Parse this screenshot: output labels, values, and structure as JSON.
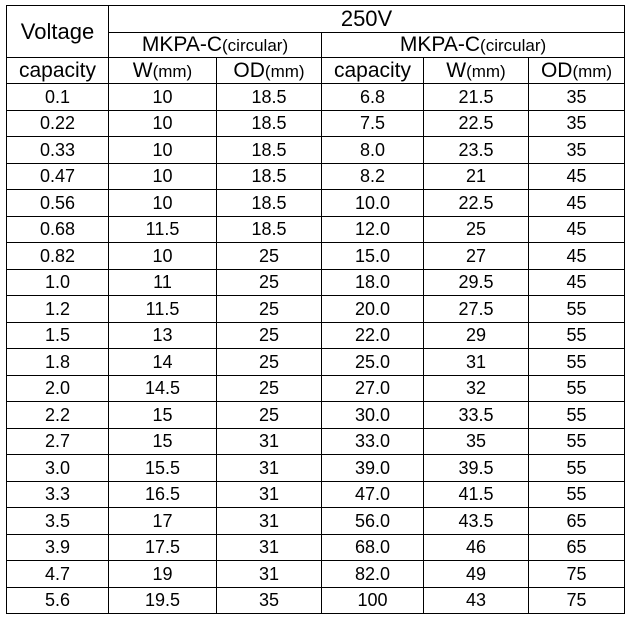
{
  "table": {
    "corner_label": "Voltage",
    "voltage": "250V",
    "series_left": {
      "name": "MKPA-C",
      "suffix": "(circular)"
    },
    "series_right": {
      "name": "MKPA-C",
      "suffix": "(circular)"
    },
    "columns": [
      {
        "main": "capacity",
        "unit": ""
      },
      {
        "main": "W",
        "unit": "(mm)"
      },
      {
        "main": "OD",
        "unit": "(mm)"
      },
      {
        "main": "capacity",
        "unit": ""
      },
      {
        "main": "W",
        "unit": "(mm)"
      },
      {
        "main": "OD",
        "unit": "(mm)"
      }
    ],
    "rows": [
      [
        "0.1",
        "10",
        "18.5",
        "6.8",
        "21.5",
        "35"
      ],
      [
        "0.22",
        "10",
        "18.5",
        "7.5",
        "22.5",
        "35"
      ],
      [
        "0.33",
        "10",
        "18.5",
        "8.0",
        "23.5",
        "35"
      ],
      [
        "0.47",
        "10",
        "18.5",
        "8.2",
        "21",
        "45"
      ],
      [
        "0.56",
        "10",
        "18.5",
        "10.0",
        "22.5",
        "45"
      ],
      [
        "0.68",
        "11.5",
        "18.5",
        "12.0",
        "25",
        "45"
      ],
      [
        "0.82",
        "10",
        "25",
        "15.0",
        "27",
        "45"
      ],
      [
        "1.0",
        "11",
        "25",
        "18.0",
        "29.5",
        "45"
      ],
      [
        "1.2",
        "11.5",
        "25",
        "20.0",
        "27.5",
        "55"
      ],
      [
        "1.5",
        "13",
        "25",
        "22.0",
        "29",
        "55"
      ],
      [
        "1.8",
        "14",
        "25",
        "25.0",
        "31",
        "55"
      ],
      [
        "2.0",
        "14.5",
        "25",
        "27.0",
        "32",
        "55"
      ],
      [
        "2.2",
        "15",
        "25",
        "30.0",
        "33.5",
        "55"
      ],
      [
        "2.7",
        "15",
        "31",
        "33.0",
        "35",
        "55"
      ],
      [
        "3.0",
        "15.5",
        "31",
        "39.0",
        "39.5",
        "55"
      ],
      [
        "3.3",
        "16.5",
        "31",
        "47.0",
        "41.5",
        "55"
      ],
      [
        "3.5",
        "17",
        "31",
        "56.0",
        "43.5",
        "65"
      ],
      [
        "3.9",
        "17.5",
        "31",
        "68.0",
        "46",
        "65"
      ],
      [
        "4.7",
        "19",
        "31",
        "82.0",
        "49",
        "75"
      ],
      [
        "5.6",
        "19.5",
        "35",
        "100",
        "43",
        "75"
      ]
    ]
  }
}
